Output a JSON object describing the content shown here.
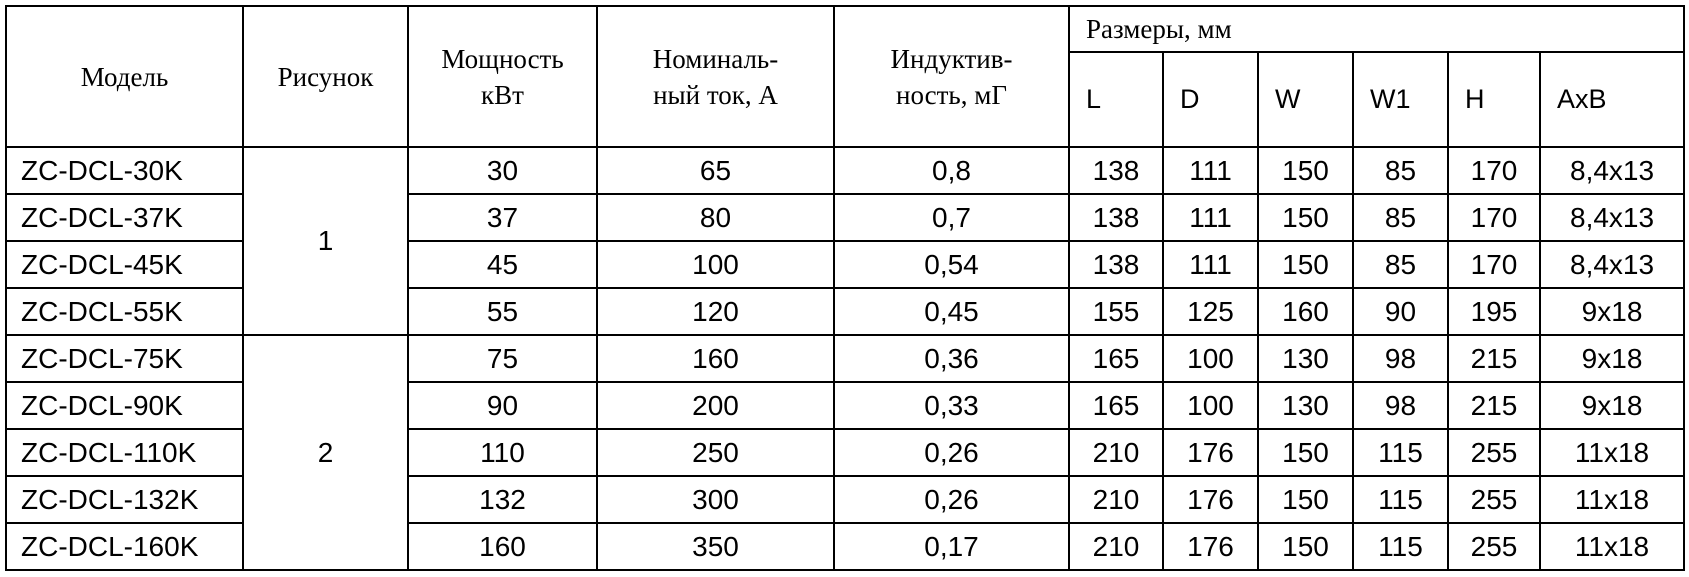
{
  "table": {
    "header": {
      "model": "Модель",
      "figure": "Рисунок",
      "power": [
        "Мощность",
        "кВт"
      ],
      "current": [
        "Номиналь-",
        "ный ток, А"
      ],
      "inductance": [
        "Индуктив-",
        "ность, мГ"
      ],
      "dimensions": "Размеры, мм",
      "dimension_columns": [
        "L",
        "D",
        "W",
        "W1",
        "H",
        "AxB"
      ]
    },
    "groups": [
      {
        "figure": "1",
        "rows": [
          [
            "ZC-DCL-30K",
            "30",
            "65",
            "0,8",
            "138",
            "111",
            "150",
            "85",
            "170",
            "8,4x13"
          ],
          [
            "ZC-DCL-37K",
            "37",
            "80",
            "0,7",
            "138",
            "111",
            "150",
            "85",
            "170",
            "8,4x13"
          ],
          [
            "ZC-DCL-45K",
            "45",
            "100",
            "0,54",
            "138",
            "111",
            "150",
            "85",
            "170",
            "8,4x13"
          ],
          [
            "ZC-DCL-55K",
            "55",
            "120",
            "0,45",
            "155",
            "125",
            "160",
            "90",
            "195",
            "9x18"
          ]
        ]
      },
      {
        "figure": "2",
        "rows": [
          [
            "ZC-DCL-75K",
            "75",
            "160",
            "0,36",
            "165",
            "100",
            "130",
            "98",
            "215",
            "9x18"
          ],
          [
            "ZC-DCL-90K",
            "90",
            "200",
            "0,33",
            "165",
            "100",
            "130",
            "98",
            "215",
            "9x18"
          ],
          [
            "ZC-DCL-110K",
            "110",
            "250",
            "0,26",
            "210",
            "176",
            "150",
            "115",
            "255",
            "11x18"
          ],
          [
            "ZC-DCL-132K",
            "132",
            "300",
            "0,26",
            "210",
            "176",
            "150",
            "115",
            "255",
            "11x18"
          ],
          [
            "ZC-DCL-160K",
            "160",
            "350",
            "0,17",
            "210",
            "176",
            "150",
            "115",
            "255",
            "11x18"
          ]
        ]
      }
    ]
  }
}
